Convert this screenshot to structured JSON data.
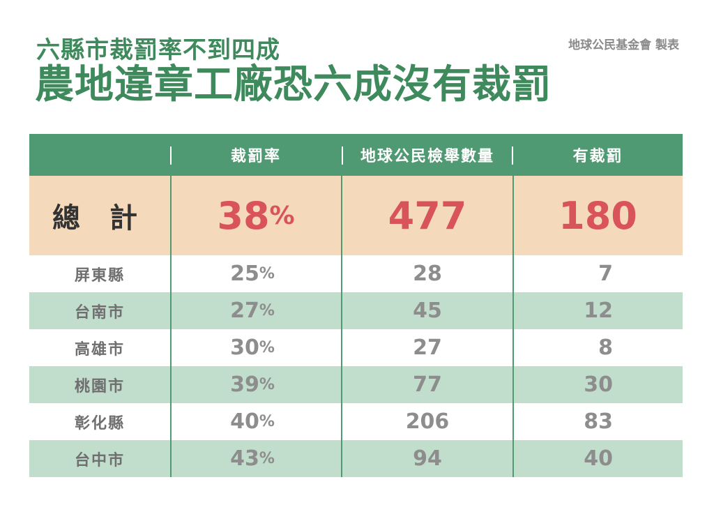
{
  "header": {
    "subtitle": "六縣市裁罰率不到四成",
    "title": "農地違章工廠恐六成沒有裁罰",
    "credit": "地球公民基金會 製表"
  },
  "table": {
    "columns": [
      "",
      "裁罰率",
      "地球公民檢舉數量",
      "有裁罰"
    ],
    "total": {
      "label": "總 計",
      "rate": "38",
      "rate_unit": "%",
      "reports": "477",
      "penalized": "180"
    },
    "rows": [
      {
        "county": "屏東縣",
        "rate": "25",
        "unit": "%",
        "reports": "28",
        "penalized": "7"
      },
      {
        "county": "台南市",
        "rate": "27",
        "unit": "%",
        "reports": "45",
        "penalized": "12"
      },
      {
        "county": "高雄市",
        "rate": "30",
        "unit": "%",
        "reports": "27",
        "penalized": "8"
      },
      {
        "county": "桃園市",
        "rate": "39",
        "unit": "%",
        "reports": "77",
        "penalized": "30"
      },
      {
        "county": "彰化縣",
        "rate": "40",
        "unit": "%",
        "reports": "206",
        "penalized": "83"
      },
      {
        "county": "台中市",
        "rate": "43",
        "unit": "%",
        "reports": "94",
        "penalized": "40"
      }
    ]
  },
  "colors": {
    "green": "#4f9a72",
    "title_green": "#3f8a5c",
    "peach": "#f5d9bb",
    "red": "#d9535b",
    "row_alt": "#c1ddcc",
    "gray": "#8d8d8d"
  }
}
